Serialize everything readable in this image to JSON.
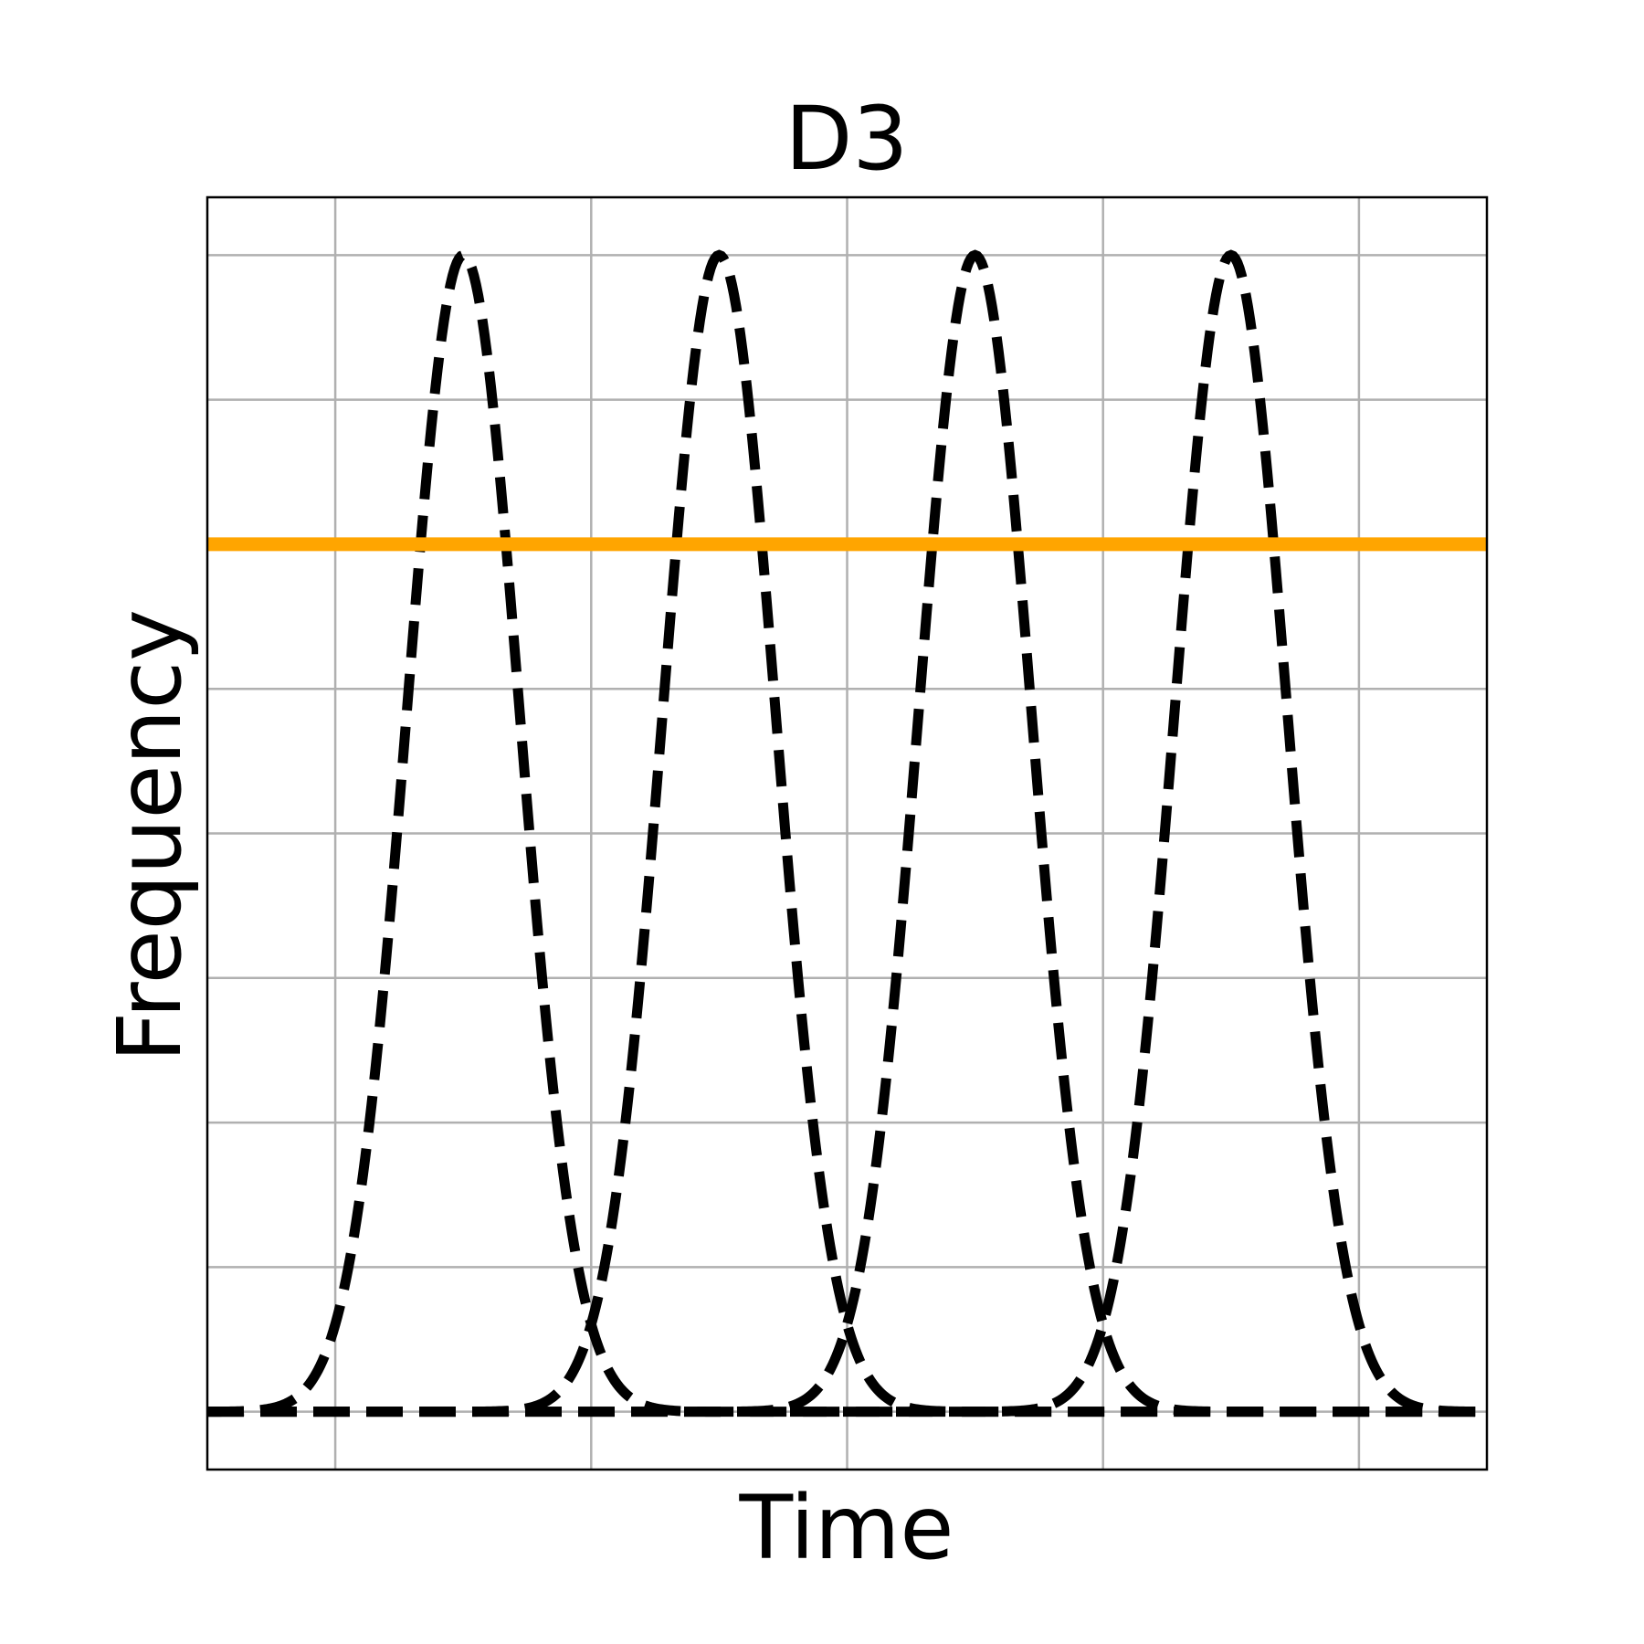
{
  "chart_data": {
    "type": "line",
    "title": "D3",
    "xlabel": "Time",
    "ylabel": "Frequency",
    "xlim": [
      0,
      5
    ],
    "ylim": [
      -0.04,
      0.84
    ],
    "grid": true,
    "x_ticks_labeled": false,
    "y_ticks_labeled": false,
    "series": [
      {
        "style": "dashed",
        "color": "#000000",
        "kind": "gaussian",
        "center": 1.0,
        "sigma": 0.22,
        "amplitude": 0.8
      },
      {
        "style": "dashed",
        "color": "#000000",
        "kind": "gaussian",
        "center": 2.0,
        "sigma": 0.22,
        "amplitude": 0.8
      },
      {
        "style": "dashed",
        "color": "#000000",
        "kind": "gaussian",
        "center": 3.0,
        "sigma": 0.22,
        "amplitude": 0.8
      },
      {
        "style": "dashed",
        "color": "#000000",
        "kind": "gaussian",
        "center": 4.0,
        "sigma": 0.22,
        "amplitude": 0.8
      },
      {
        "style": "solid",
        "color": "#FFA500",
        "kind": "horizontal",
        "y": 0.6
      }
    ]
  }
}
